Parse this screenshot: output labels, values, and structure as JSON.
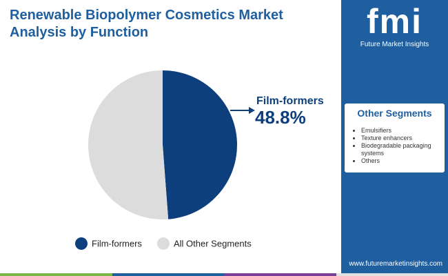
{
  "chart_data": {
    "type": "pie",
    "title": "Renewable Biopolymer Cosmetics Market Analysis by Function",
    "categories": [
      "Film-formers",
      "All Other Segments"
    ],
    "values": [
      48.8,
      51.2
    ],
    "value_labels": [
      "48.8%",
      null
    ],
    "colors": [
      "#0d3f7d",
      "#dcdcdc"
    ]
  },
  "sidebar": {
    "logo": "fmi",
    "brand": "Future Market Insights",
    "heading": "Other Segments",
    "items": [
      "Emulsifiers",
      "Texture enhancers",
      "Biodegradable packaging systems",
      "Others"
    ],
    "website": "www.futuremarketinsights.com"
  }
}
